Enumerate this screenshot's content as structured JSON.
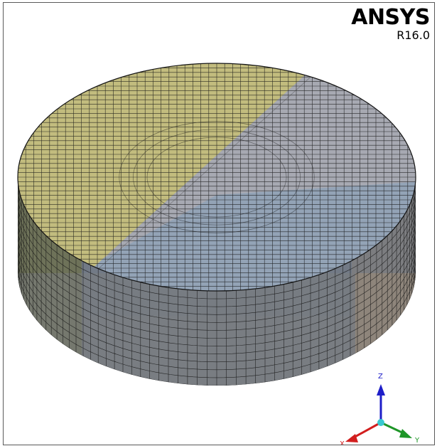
{
  "app": {
    "logo_name": "ANSYS",
    "logo_release": "R16.0"
  },
  "viewport": {
    "model": "cylindrical-disk-mesh",
    "body_colors": {
      "top_left": "#c2bc7e",
      "top_right": "#a7a9b2",
      "top_front": "#93a3b6",
      "side_front": "#727a86",
      "side_right_orange": "#b29473",
      "side_left": "#6e7259",
      "side_gray": "#7c7d80",
      "mesh_line": "#141414"
    }
  },
  "triad": {
    "z_label": "Z",
    "x_label": "X",
    "y_label": "Y",
    "z_color": "#1e1ec8",
    "x_color": "#d21e1e",
    "y_color": "#1e9628",
    "origin_color": "#38c8d0"
  }
}
